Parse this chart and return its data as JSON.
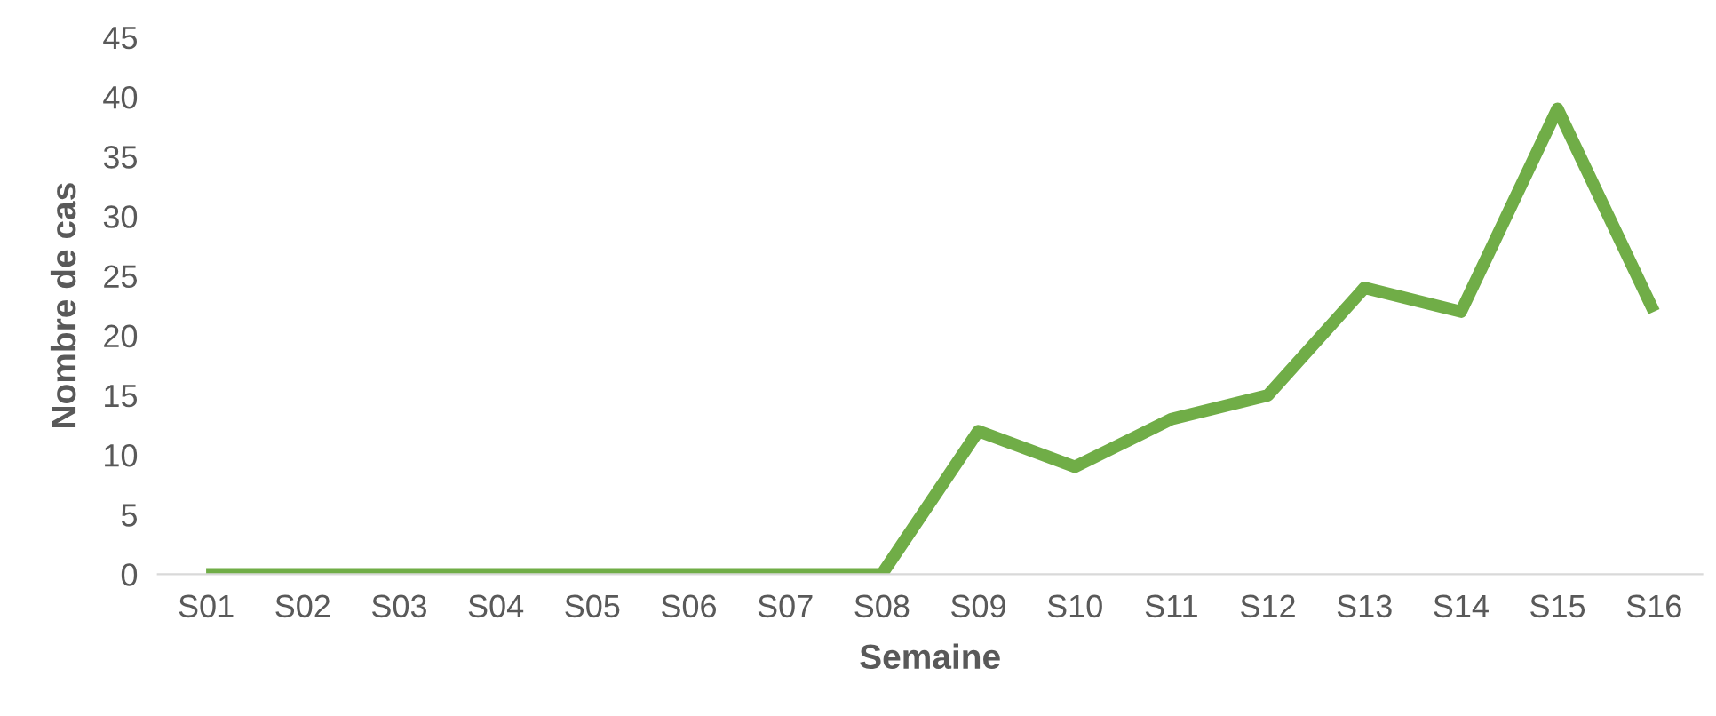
{
  "chart_data": {
    "type": "line",
    "xlabel": "Semaine",
    "ylabel": "Nombre de cas",
    "categories": [
      "S01",
      "S02",
      "S03",
      "S04",
      "S05",
      "S06",
      "S07",
      "S08",
      "S09",
      "S10",
      "S11",
      "S12",
      "S13",
      "S14",
      "S15",
      "S16"
    ],
    "series": [
      {
        "color": "#70ad47",
        "values": [
          0,
          0,
          0,
          0,
          0,
          0,
          0,
          0,
          12,
          9,
          13,
          15,
          24,
          22,
          39,
          22
        ]
      }
    ],
    "ylim": [
      0,
      45
    ],
    "yticks": [
      0,
      5,
      10,
      15,
      20,
      25,
      30,
      35,
      40,
      45
    ],
    "grid": false,
    "legend": false,
    "marker": "none",
    "line_style": "solid"
  }
}
